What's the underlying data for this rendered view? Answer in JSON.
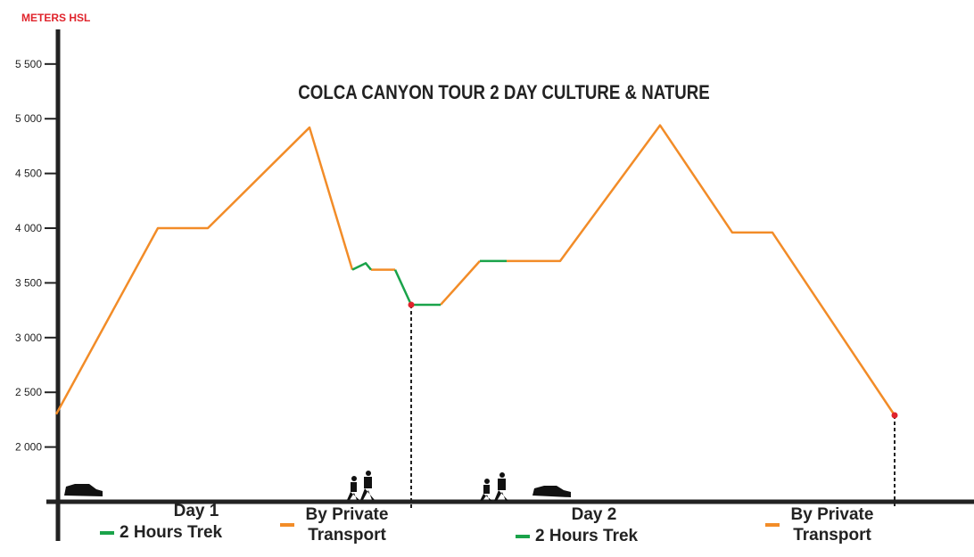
{
  "chart_data": {
    "type": "line",
    "title": "COLCA CANYON TOUR 2 DAY CULTURE & NATURE",
    "y_label": "METERS HSL",
    "ylim": [
      1500,
      5800
    ],
    "yticks": [
      {
        "value": 2000,
        "label": "2 000"
      },
      {
        "value": 2500,
        "label": "2 500"
      },
      {
        "value": 3000,
        "label": "3 000"
      },
      {
        "value": 3500,
        "label": "3 500"
      },
      {
        "value": 4000,
        "label": "4 000"
      },
      {
        "value": 4500,
        "label": "4 500"
      },
      {
        "value": 5000,
        "label": "5 000"
      },
      {
        "value": 5500,
        "label": "5 500"
      }
    ],
    "xlim": [
      0,
      1025
    ],
    "series": [
      {
        "name": "By Private Transport",
        "color": "#f28c28",
        "x": [
          0,
          114,
          170,
          284,
          332,
          null,
          353,
          380,
          null,
          431,
          475,
          null,
          505,
          565,
          677,
          758,
          803,
          940
        ],
        "values": [
          2300,
          4000,
          4000,
          4920,
          3620,
          null,
          3620,
          3620,
          null,
          3300,
          3700,
          null,
          3700,
          3700,
          4940,
          3960,
          3960,
          2290
        ]
      },
      {
        "name": "2 Hours Trek",
        "color": "#1aa34a",
        "x": [
          332,
          347,
          353,
          null,
          380,
          398,
          431,
          null,
          475,
          505
        ],
        "values": [
          3620,
          3680,
          3620,
          null,
          3620,
          3300,
          3300,
          null,
          3700,
          3700
        ]
      }
    ],
    "days": [
      "Day 1",
      "Day 2"
    ]
  }
}
